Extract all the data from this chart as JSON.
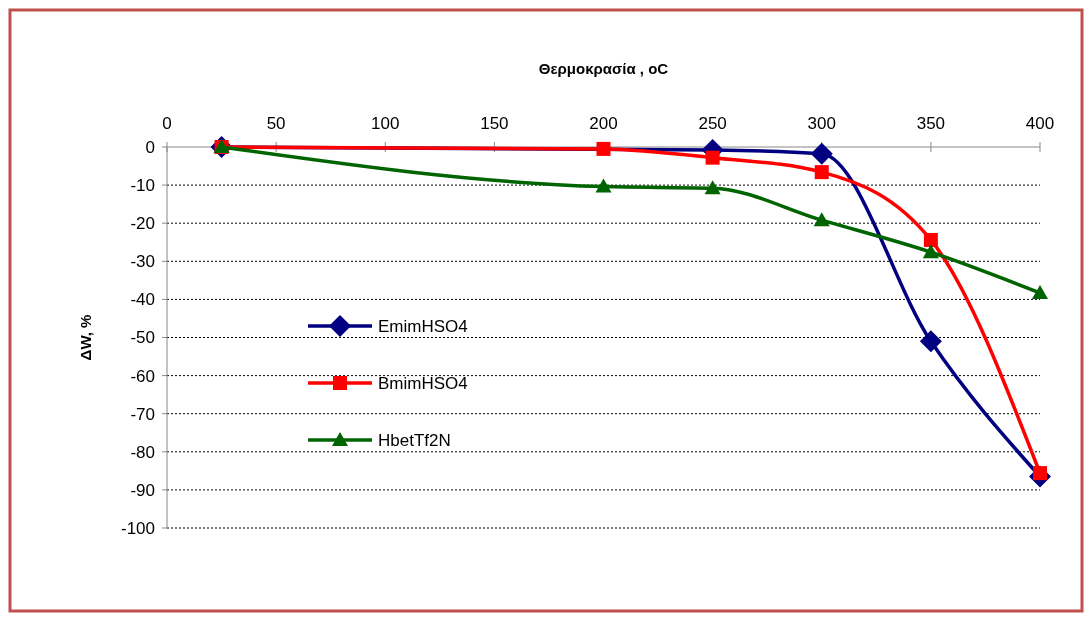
{
  "chart_data": {
    "type": "line",
    "xlabel": "Θερμοκρασία , oC",
    "ylabel": "ΔW, %",
    "xlim": [
      0,
      400
    ],
    "xticks": [
      0,
      50,
      100,
      150,
      200,
      250,
      300,
      350,
      400
    ],
    "ylim": [
      -100,
      0
    ],
    "yticks": [
      0,
      -10,
      -20,
      -30,
      -40,
      -50,
      -60,
      -70,
      -80,
      -90,
      -100
    ],
    "grid": "y",
    "legend": "left",
    "series": [
      {
        "name": "EmimHSO4",
        "color": "#000080",
        "marker": "diamond",
        "x": [
          25,
          250,
          300,
          350,
          400
        ],
        "values": [
          0,
          -0.8,
          -1.8,
          -51,
          -86.5
        ]
      },
      {
        "name": "BmimHSO4",
        "color": "#ff0000",
        "marker": "square",
        "x": [
          25,
          200,
          250,
          300,
          350,
          400
        ],
        "values": [
          0,
          -0.5,
          -2.8,
          -6.6,
          -24.4,
          -85.6
        ]
      },
      {
        "name": "HbetTf2N",
        "color": "#006400",
        "marker": "triangle",
        "x": [
          25,
          200,
          250,
          300,
          350,
          400
        ],
        "values": [
          0,
          -10.4,
          -10.8,
          -19.2,
          -27.6,
          -38.3
        ]
      }
    ]
  }
}
